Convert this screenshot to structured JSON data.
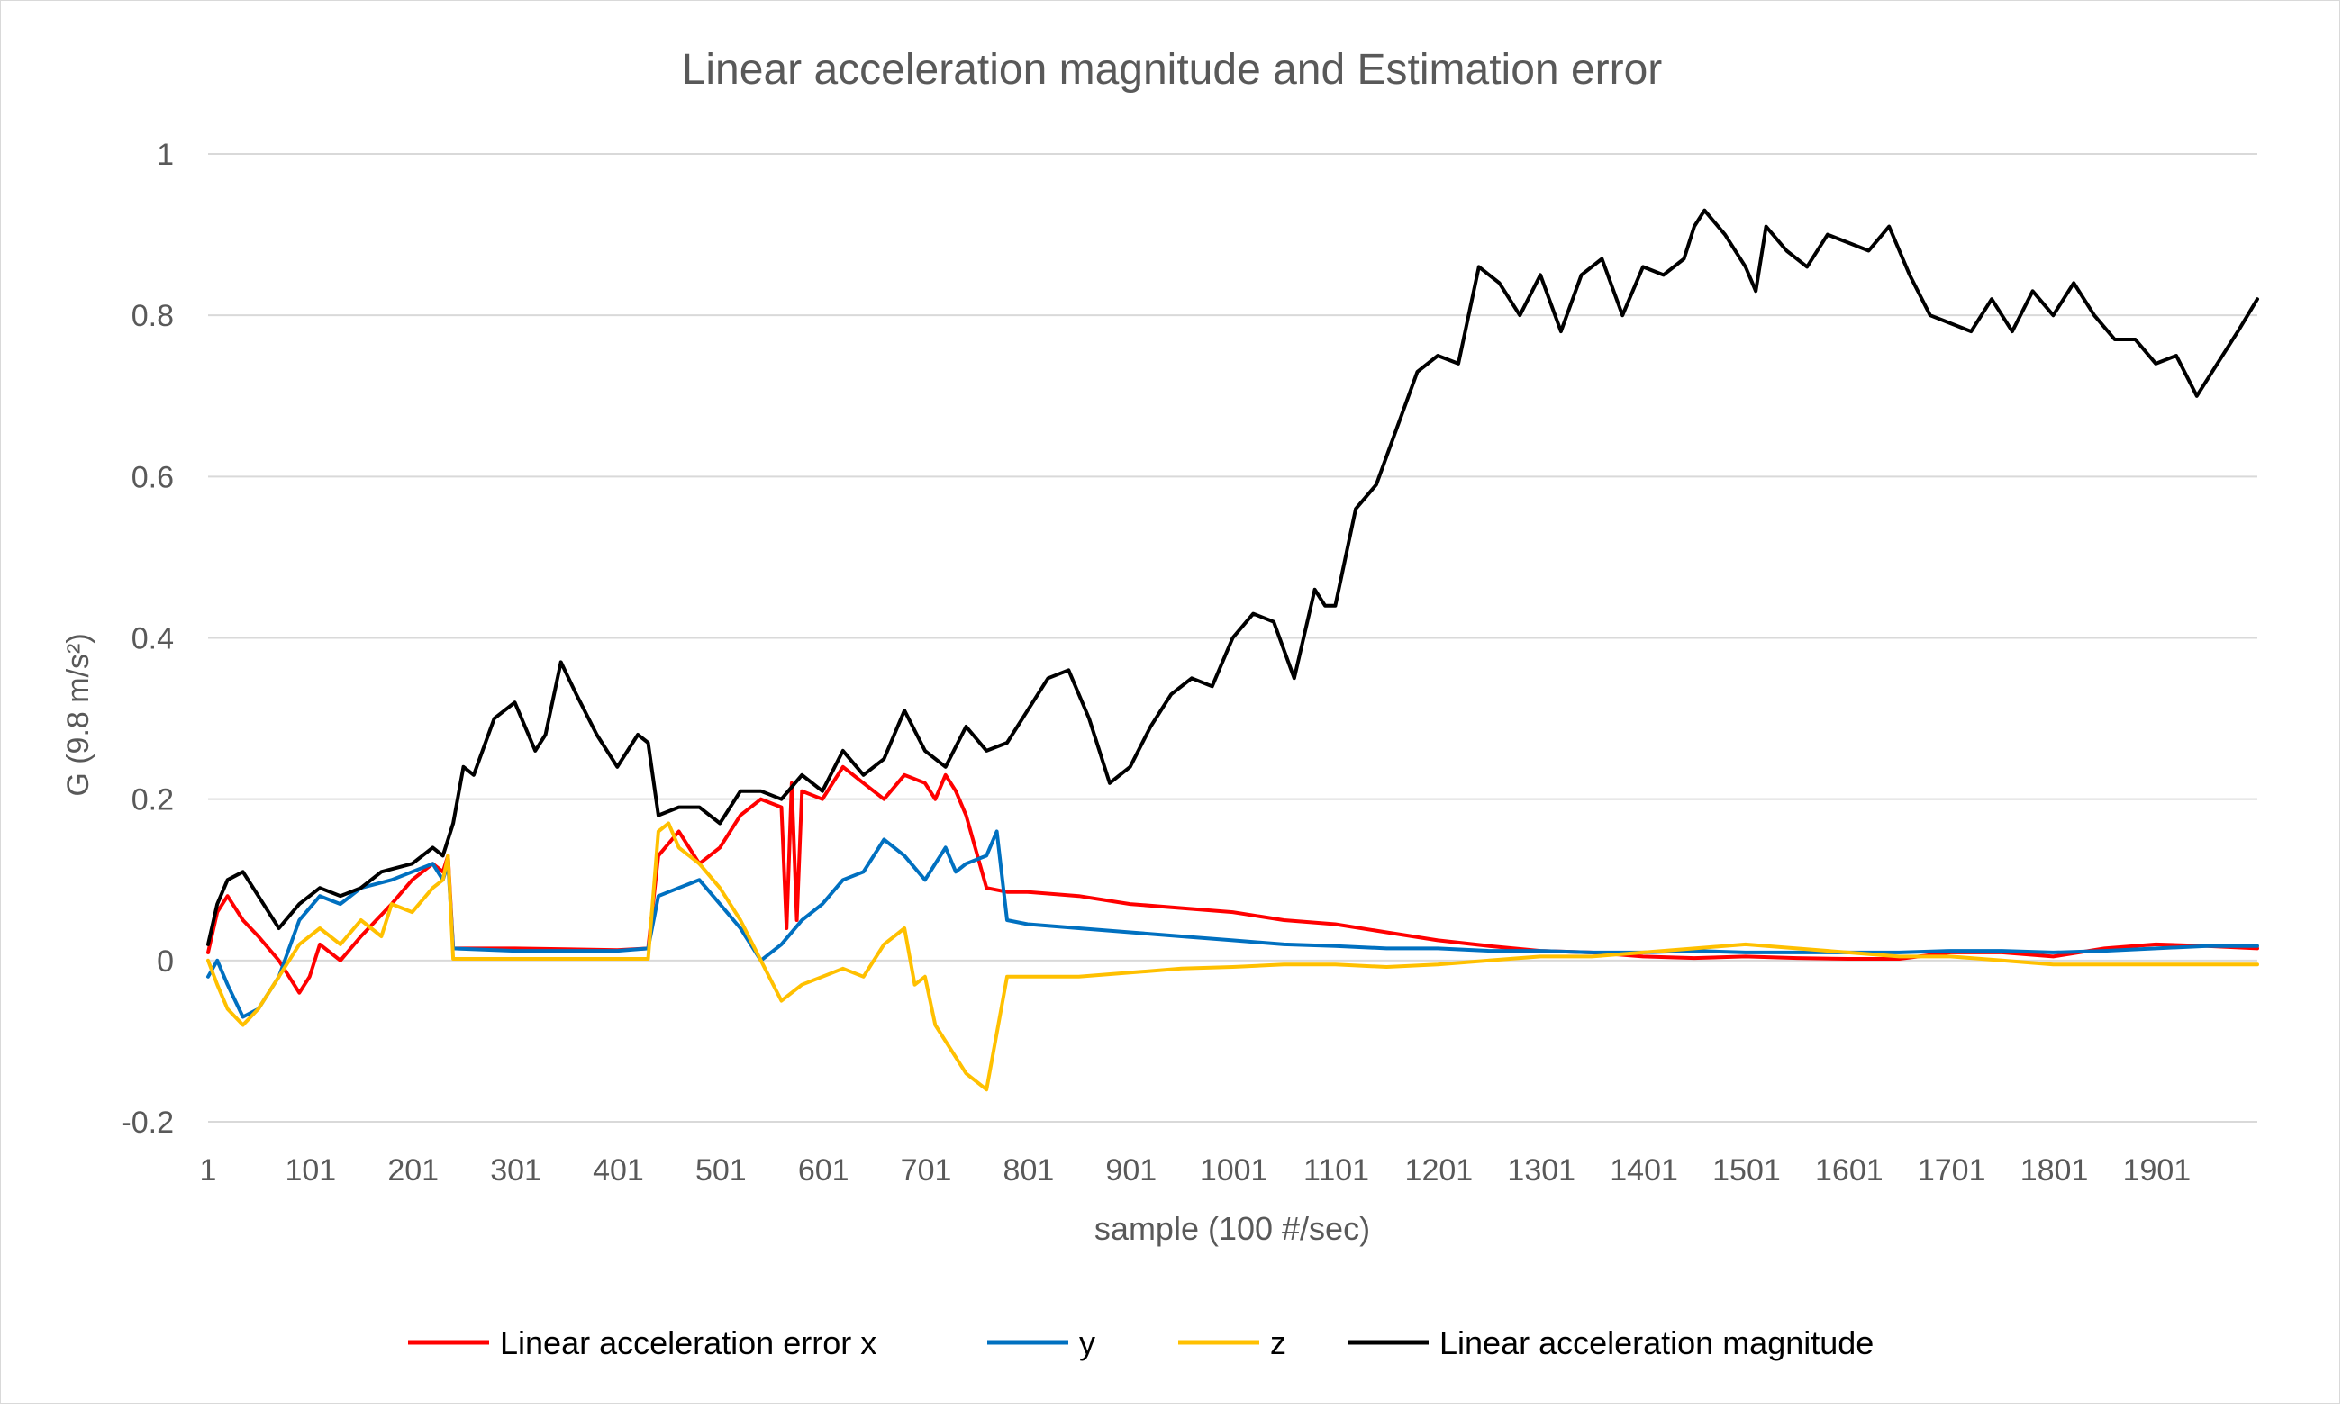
{
  "chart_data": {
    "type": "line",
    "title": "Linear acceleration magnitude and Estimation error",
    "xlabel": "sample (100 #/sec)",
    "ylabel": "G (9.8 m/s²)",
    "xlim": [
      1,
      1999
    ],
    "ylim": [
      -0.2,
      1
    ],
    "x_ticks": [
      "1",
      "101",
      "201",
      "301",
      "401",
      "501",
      "601",
      "701",
      "801",
      "901",
      "1001",
      "1101",
      "1201",
      "1301",
      "1401",
      "1501",
      "1601",
      "1701",
      "1801",
      "1901"
    ],
    "y_ticks": [
      -0.2,
      0,
      0.2,
      0.4,
      0.6,
      0.8,
      1
    ],
    "y_tick_labels": [
      "-0.2",
      "0",
      "0.2",
      "0.4",
      "0.6",
      "0.8",
      "1"
    ],
    "grid": "horizontal",
    "legend_position": "bottom",
    "series": [
      {
        "name": "Linear acceleration error x",
        "color": "#ff0000",
        "x": [
          1,
          10,
          20,
          35,
          50,
          70,
          90,
          100,
          110,
          130,
          150,
          180,
          200,
          220,
          230,
          235,
          240,
          300,
          400,
          430,
          440,
          460,
          480,
          500,
          520,
          540,
          560,
          565,
          570,
          575,
          580,
          600,
          620,
          640,
          660,
          680,
          700,
          710,
          720,
          730,
          740,
          760,
          780,
          800,
          850,
          900,
          950,
          1000,
          1050,
          1100,
          1150,
          1200,
          1250,
          1300,
          1350,
          1400,
          1450,
          1500,
          1550,
          1600,
          1650,
          1700,
          1750,
          1800,
          1850,
          1900,
          1950,
          1999
        ],
        "y": [
          0.01,
          0.06,
          0.08,
          0.05,
          0.03,
          0.0,
          -0.04,
          -0.02,
          0.02,
          0.0,
          0.03,
          0.07,
          0.1,
          0.12,
          0.11,
          0.13,
          0.015,
          0.015,
          0.013,
          0.015,
          0.13,
          0.16,
          0.12,
          0.14,
          0.18,
          0.2,
          0.19,
          0.04,
          0.22,
          0.05,
          0.21,
          0.2,
          0.24,
          0.22,
          0.2,
          0.23,
          0.22,
          0.2,
          0.23,
          0.21,
          0.18,
          0.09,
          0.085,
          0.085,
          0.08,
          0.07,
          0.065,
          0.06,
          0.05,
          0.045,
          0.035,
          0.025,
          0.018,
          0.012,
          0.01,
          0.005,
          0.003,
          0.005,
          0.003,
          0.002,
          0.002,
          0.01,
          0.01,
          0.005,
          0.015,
          0.02,
          0.018,
          0.015
        ]
      },
      {
        "name": "y",
        "color": "#0070c0",
        "x": [
          1,
          10,
          20,
          35,
          50,
          70,
          90,
          110,
          130,
          150,
          180,
          200,
          220,
          230,
          235,
          240,
          300,
          400,
          430,
          440,
          460,
          480,
          500,
          520,
          540,
          560,
          580,
          600,
          620,
          640,
          660,
          680,
          700,
          710,
          720,
          730,
          740,
          760,
          770,
          780,
          800,
          850,
          900,
          950,
          1000,
          1050,
          1100,
          1150,
          1200,
          1250,
          1300,
          1350,
          1400,
          1450,
          1500,
          1550,
          1600,
          1650,
          1700,
          1750,
          1800,
          1850,
          1900,
          1950,
          1999
        ],
        "y": [
          -0.02,
          0.0,
          -0.03,
          -0.07,
          -0.06,
          -0.02,
          0.05,
          0.08,
          0.07,
          0.09,
          0.1,
          0.11,
          0.12,
          0.1,
          0.12,
          0.015,
          0.012,
          0.012,
          0.015,
          0.08,
          0.09,
          0.1,
          0.07,
          0.04,
          0.0,
          0.02,
          0.05,
          0.07,
          0.1,
          0.11,
          0.15,
          0.13,
          0.1,
          0.12,
          0.14,
          0.11,
          0.12,
          0.13,
          0.16,
          0.05,
          0.045,
          0.04,
          0.035,
          0.03,
          0.025,
          0.02,
          0.018,
          0.015,
          0.015,
          0.012,
          0.012,
          0.01,
          0.01,
          0.012,
          0.01,
          0.01,
          0.01,
          0.01,
          0.012,
          0.012,
          0.01,
          0.012,
          0.015,
          0.018,
          0.018
        ]
      },
      {
        "name": "z",
        "color": "#ffc000",
        "x": [
          1,
          10,
          20,
          35,
          50,
          70,
          90,
          110,
          130,
          150,
          170,
          180,
          200,
          220,
          230,
          235,
          240,
          300,
          400,
          430,
          440,
          450,
          460,
          480,
          500,
          520,
          540,
          560,
          580,
          600,
          620,
          640,
          660,
          680,
          690,
          700,
          710,
          720,
          730,
          740,
          760,
          780,
          800,
          850,
          900,
          950,
          1000,
          1050,
          1100,
          1150,
          1200,
          1250,
          1300,
          1350,
          1400,
          1450,
          1500,
          1550,
          1600,
          1650,
          1700,
          1750,
          1800,
          1850,
          1900,
          1950,
          1999
        ],
        "y": [
          0.0,
          -0.03,
          -0.06,
          -0.08,
          -0.06,
          -0.02,
          0.02,
          0.04,
          0.02,
          0.05,
          0.03,
          0.07,
          0.06,
          0.09,
          0.1,
          0.13,
          0.002,
          0.002,
          0.002,
          0.002,
          0.16,
          0.17,
          0.14,
          0.12,
          0.09,
          0.05,
          0.0,
          -0.05,
          -0.03,
          -0.02,
          -0.01,
          -0.02,
          0.02,
          0.04,
          -0.03,
          -0.02,
          -0.08,
          -0.1,
          -0.12,
          -0.14,
          -0.16,
          -0.02,
          -0.02,
          -0.02,
          -0.015,
          -0.01,
          -0.008,
          -0.005,
          -0.005,
          -0.008,
          -0.005,
          0.0,
          0.005,
          0.005,
          0.01,
          0.015,
          0.02,
          0.015,
          0.01,
          0.005,
          0.005,
          0.0,
          -0.005,
          -0.005,
          -0.005,
          -0.005,
          -0.005
        ]
      },
      {
        "name": "Linear acceleration magnitude",
        "color": "#000000",
        "x": [
          1,
          10,
          20,
          35,
          50,
          70,
          90,
          110,
          130,
          150,
          170,
          200,
          220,
          230,
          240,
          250,
          260,
          280,
          300,
          320,
          330,
          345,
          360,
          380,
          400,
          420,
          430,
          440,
          460,
          480,
          500,
          520,
          540,
          560,
          580,
          600,
          620,
          640,
          660,
          680,
          700,
          720,
          740,
          760,
          780,
          800,
          820,
          840,
          860,
          870,
          880,
          900,
          920,
          940,
          960,
          980,
          1000,
          1020,
          1040,
          1060,
          1080,
          1090,
          1100,
          1120,
          1140,
          1160,
          1180,
          1200,
          1220,
          1240,
          1250,
          1260,
          1280,
          1300,
          1320,
          1340,
          1360,
          1380,
          1400,
          1420,
          1440,
          1450,
          1460,
          1480,
          1500,
          1510,
          1520,
          1540,
          1560,
          1580,
          1600,
          1620,
          1640,
          1660,
          1680,
          1700,
          1720,
          1740,
          1760,
          1780,
          1800,
          1820,
          1840,
          1860,
          1880,
          1900,
          1920,
          1940,
          1960,
          1980,
          1999
        ],
        "y": [
          0.02,
          0.07,
          0.1,
          0.11,
          0.08,
          0.04,
          0.07,
          0.09,
          0.08,
          0.09,
          0.11,
          0.12,
          0.14,
          0.13,
          0.17,
          0.24,
          0.23,
          0.3,
          0.32,
          0.26,
          0.28,
          0.37,
          0.33,
          0.28,
          0.24,
          0.28,
          0.27,
          0.18,
          0.19,
          0.19,
          0.17,
          0.21,
          0.21,
          0.2,
          0.23,
          0.21,
          0.26,
          0.23,
          0.25,
          0.31,
          0.26,
          0.24,
          0.29,
          0.26,
          0.27,
          0.31,
          0.35,
          0.36,
          0.3,
          0.26,
          0.22,
          0.24,
          0.29,
          0.33,
          0.35,
          0.34,
          0.4,
          0.43,
          0.42,
          0.35,
          0.46,
          0.44,
          0.44,
          0.56,
          0.59,
          0.66,
          0.73,
          0.75,
          0.74,
          0.86,
          0.85,
          0.84,
          0.8,
          0.85,
          0.78,
          0.85,
          0.87,
          0.8,
          0.86,
          0.85,
          0.87,
          0.91,
          0.93,
          0.9,
          0.86,
          0.83,
          0.91,
          0.88,
          0.86,
          0.9,
          0.89,
          0.88,
          0.91,
          0.85,
          0.8,
          0.79,
          0.78,
          0.82,
          0.78,
          0.83,
          0.8,
          0.84,
          0.8,
          0.77,
          0.77,
          0.74,
          0.75,
          0.7,
          0.74,
          0.78,
          0.82
        ]
      }
    ]
  }
}
